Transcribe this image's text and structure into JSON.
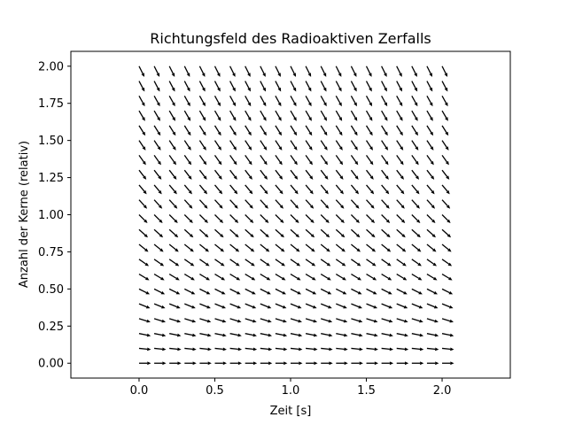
{
  "chart_data": {
    "type": "quiver",
    "title": "Richtungsfeld des Radioaktiven Zerfalls",
    "xlabel": "Zeit [s]",
    "ylabel": "Anzahl der Kerne (relativ)",
    "xlim": [
      -0.45,
      2.45
    ],
    "ylim": [
      -0.1,
      2.1
    ],
    "x_ticks": [
      0.0,
      0.5,
      1.0,
      1.5,
      2.0
    ],
    "x_tick_labels": [
      "0.0",
      "0.5",
      "1.0",
      "1.5",
      "2.0"
    ],
    "y_ticks": [
      0.0,
      0.25,
      0.5,
      0.75,
      1.0,
      1.25,
      1.5,
      1.75,
      2.0
    ],
    "y_tick_labels": [
      "0.00",
      "0.25",
      "0.50",
      "0.75",
      "1.00",
      "1.25",
      "1.50",
      "1.75",
      "2.00"
    ],
    "grid": false,
    "legend": false,
    "arrow_color": "#000000",
    "field": {
      "x": [
        0.0,
        0.1,
        0.2,
        0.3,
        0.4,
        0.5,
        0.6,
        0.7,
        0.8,
        0.9,
        1.0,
        1.1,
        1.2,
        1.3,
        1.4,
        1.5,
        1.6,
        1.7,
        1.8,
        1.9,
        2.0
      ],
      "y": [
        0.0,
        0.1,
        0.2,
        0.3,
        0.4,
        0.5,
        0.6,
        0.7,
        0.8,
        0.9,
        1.0,
        1.1,
        1.2,
        1.3,
        1.4,
        1.5,
        1.6,
        1.7,
        1.8,
        1.9,
        2.0
      ],
      "u": 1,
      "dv_dy_coefficient": -1.0
    }
  }
}
